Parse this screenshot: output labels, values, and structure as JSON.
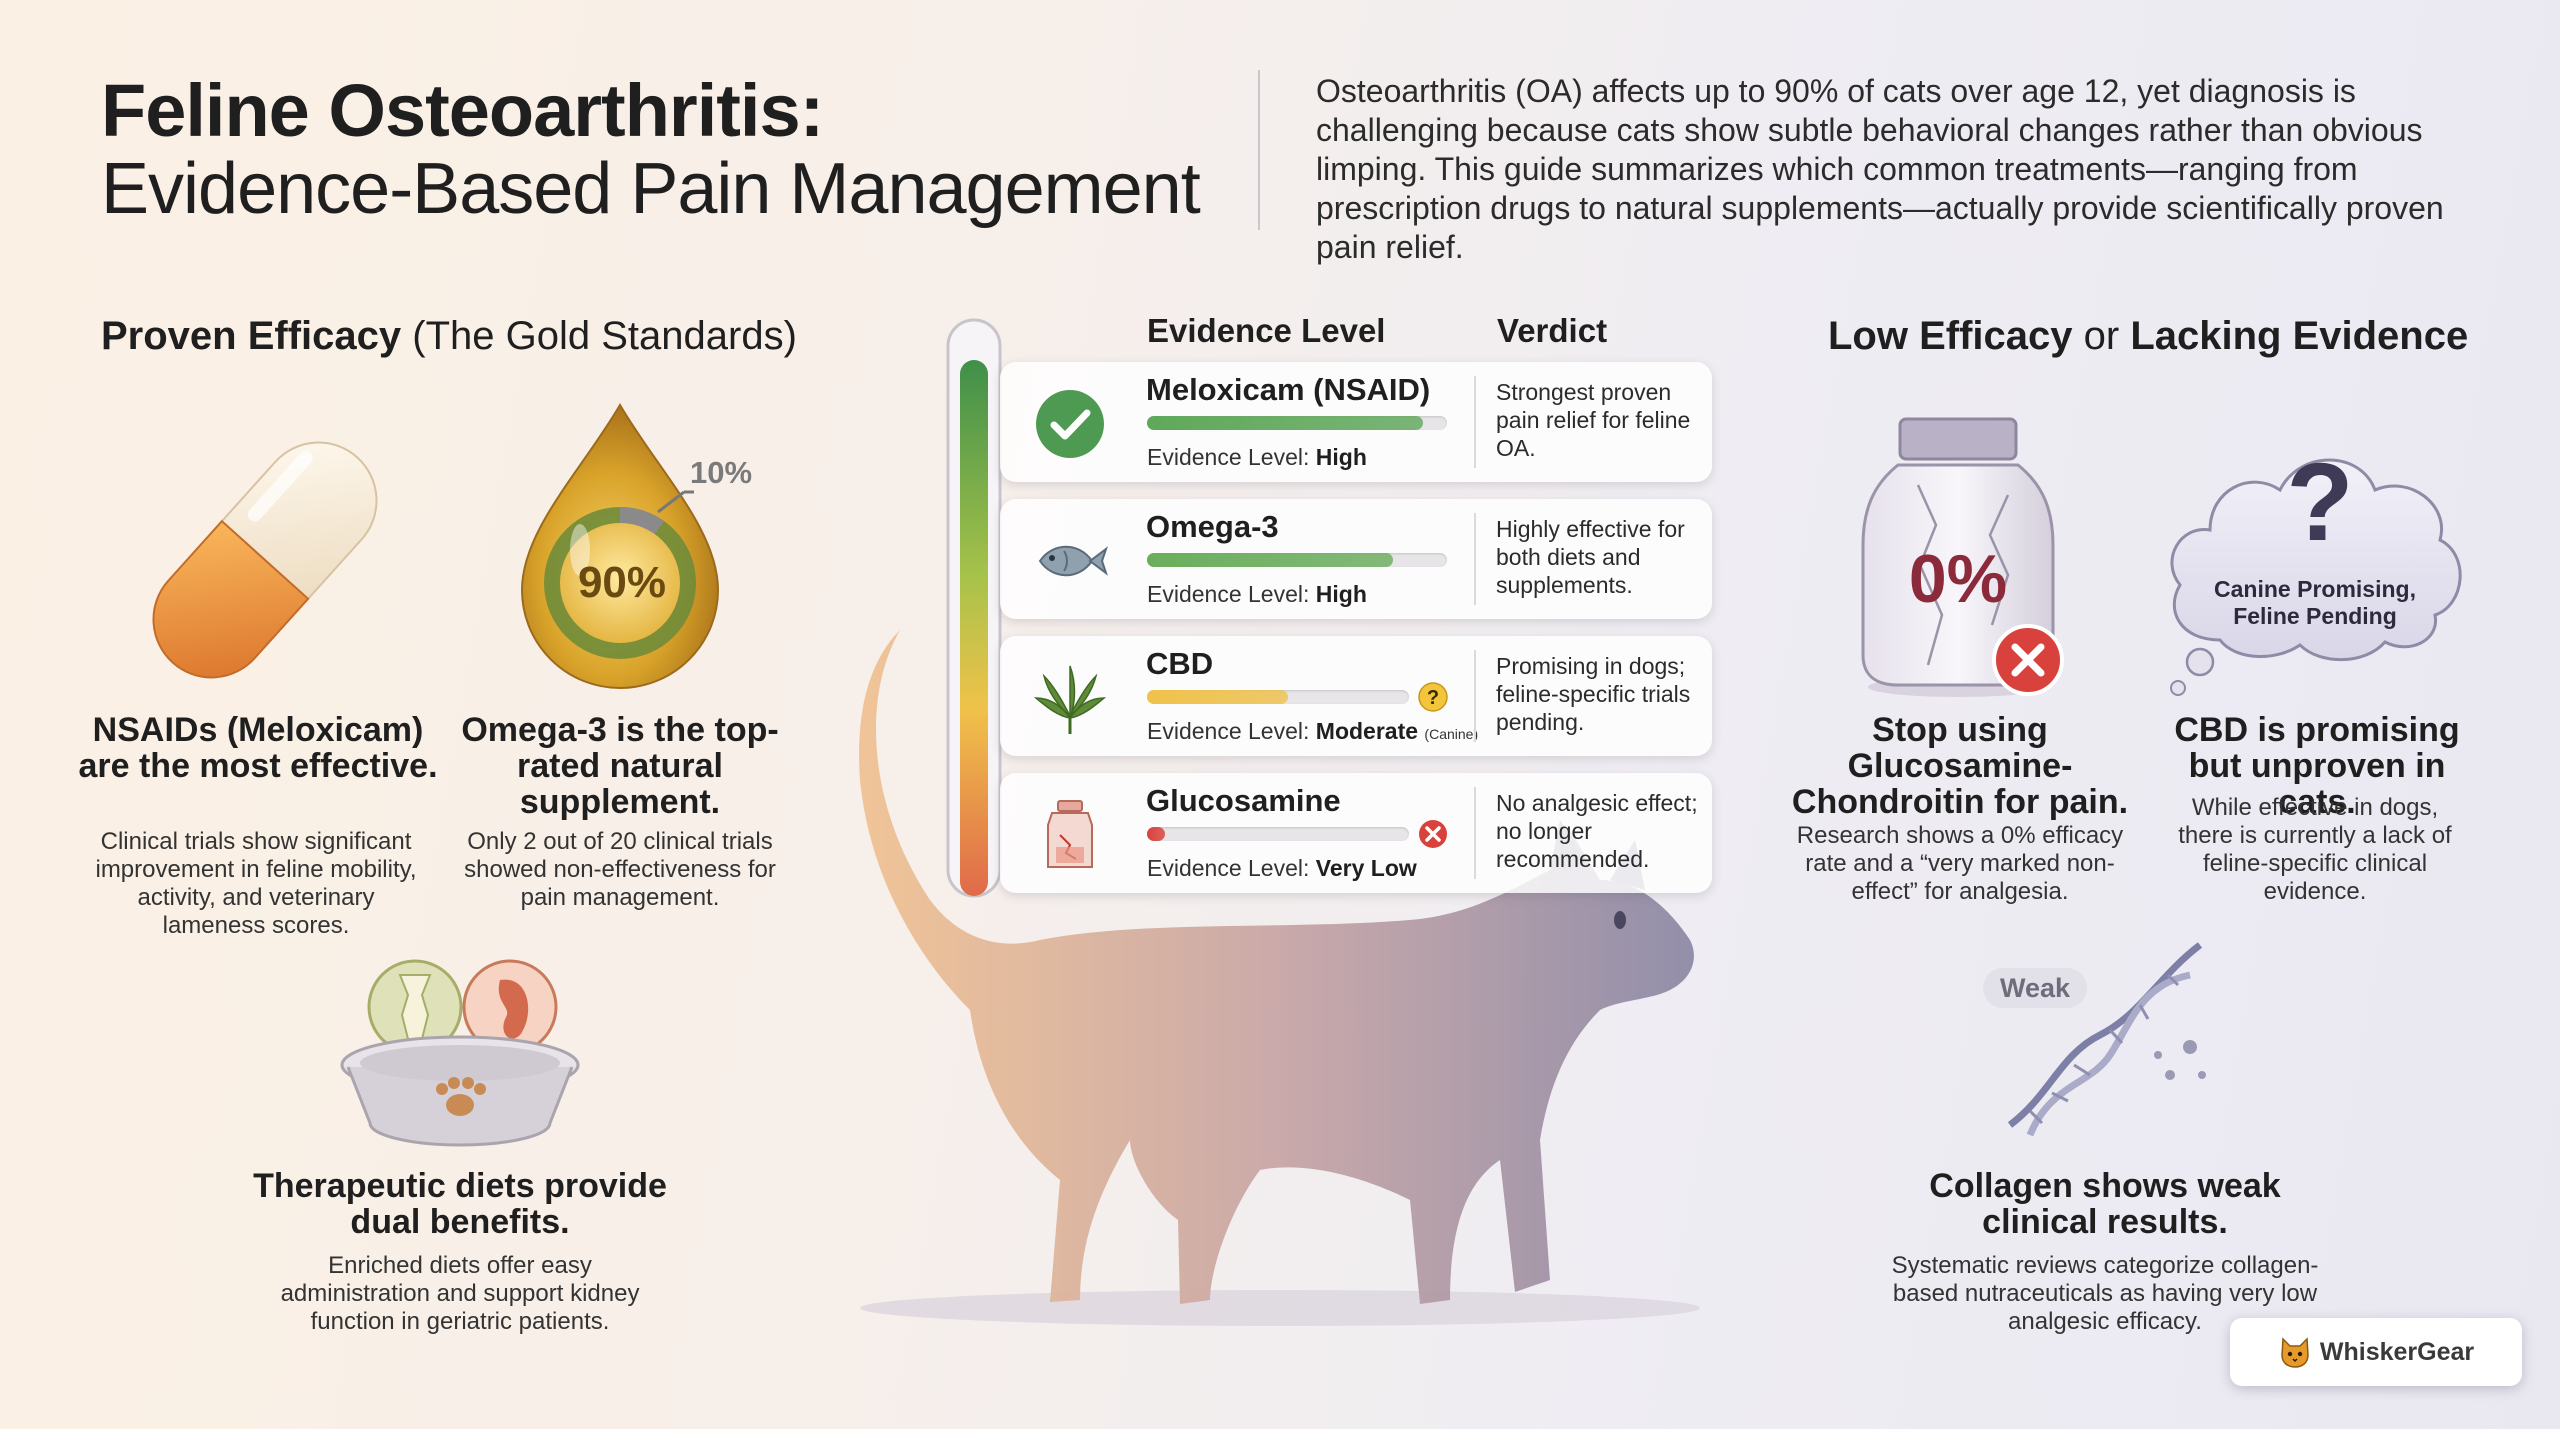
{
  "header": {
    "title_line1": "Feline Osteoarthritis:",
    "title_line2": "Evidence-Based Pain Management",
    "intro": "Osteoarthritis (OA) affects up to 90% of cats over age 12, yet diagnosis is challenging because cats show subtle behavioral changes rather than obvious limping. This guide summarizes which common treatments—ranging from prescription drugs to natural supplements—actually provide scientifically proven pain relief."
  },
  "left": {
    "heading_bold": "Proven Efficacy",
    "heading_rest": " (The Gold Standards)",
    "nsaid": {
      "title": "NSAIDs (Meloxicam) are the most effective.",
      "body": "Clinical trials show significant improvement in feline mobility, activity, and veterinary lameness scores."
    },
    "omega": {
      "drop_value": "90%",
      "drop_callout": "10%",
      "title": "Omega-3 is the top-rated natural supplement.",
      "body": "Only 2 out of 20 clinical trials showed non-effectiveness for pain management."
    },
    "diet": {
      "title": "Therapeutic diets provide dual benefits.",
      "body": "Enriched diets offer easy administration and support kidney function in geriatric patients."
    }
  },
  "table": {
    "col_evidence": "Evidence Level",
    "col_verdict": "Verdict",
    "level_prefix": "Evidence Level: ",
    "rows": [
      {
        "name": "Meloxicam (NSAID)",
        "level": "High",
        "level_note": "",
        "score": 0.92,
        "color": "#5fa85a",
        "verdict": "Strongest proven pain relief for feline OA.",
        "icon": "checkmark-circle-icon"
      },
      {
        "name": "Omega-3",
        "level": "High",
        "level_note": "",
        "score": 0.82,
        "color": "#6aae5c",
        "verdict": "Highly effective for both diets and supplements.",
        "icon": "fish-icon"
      },
      {
        "name": "CBD",
        "level": "Moderate",
        "level_note": "(Canine)",
        "score": 0.54,
        "color": "#f0c24a",
        "verdict": "Promising in dogs; feline-specific trials pending.",
        "icon": "cannabis-leaf-icon"
      },
      {
        "name": "Glucosamine",
        "level": "Very Low",
        "level_note": "",
        "score": 0.07,
        "color": "#d9413c",
        "verdict": "No analgesic effect; no longer recommended.",
        "icon": "supplement-bottle-icon"
      }
    ]
  },
  "right": {
    "heading_bold1": "Low Efficacy",
    "heading_or": " or ",
    "heading_bold2": "Lacking Evidence",
    "glucosamine": {
      "jar_value": "0%",
      "title": "Stop using Glucosamine-Chondroitin for pain.",
      "body": "Research shows a 0% efficacy rate and a “very marked non-effect” for analgesia."
    },
    "cbd": {
      "cloud_symbol": "?",
      "cloud_text": "Canine Promising, Feline Pending",
      "title": "CBD is promising but unproven in cats.",
      "body": "While effective in dogs, there is currently a lack of feline-specific clinical evidence."
    },
    "collagen": {
      "tag": "Weak",
      "title": "Collagen shows weak clinical results.",
      "body": "Systematic reviews categorize collagen-based nutraceuticals as having very low analgesic efficacy."
    }
  },
  "brand": {
    "name": "WhiskerGear"
  },
  "colors": {
    "accent_green": "#5fa85a",
    "accent_yellow": "#f0c24a",
    "accent_red": "#d9413c",
    "cat_left": "#e9b585",
    "cat_right": "#8e8aa6"
  }
}
